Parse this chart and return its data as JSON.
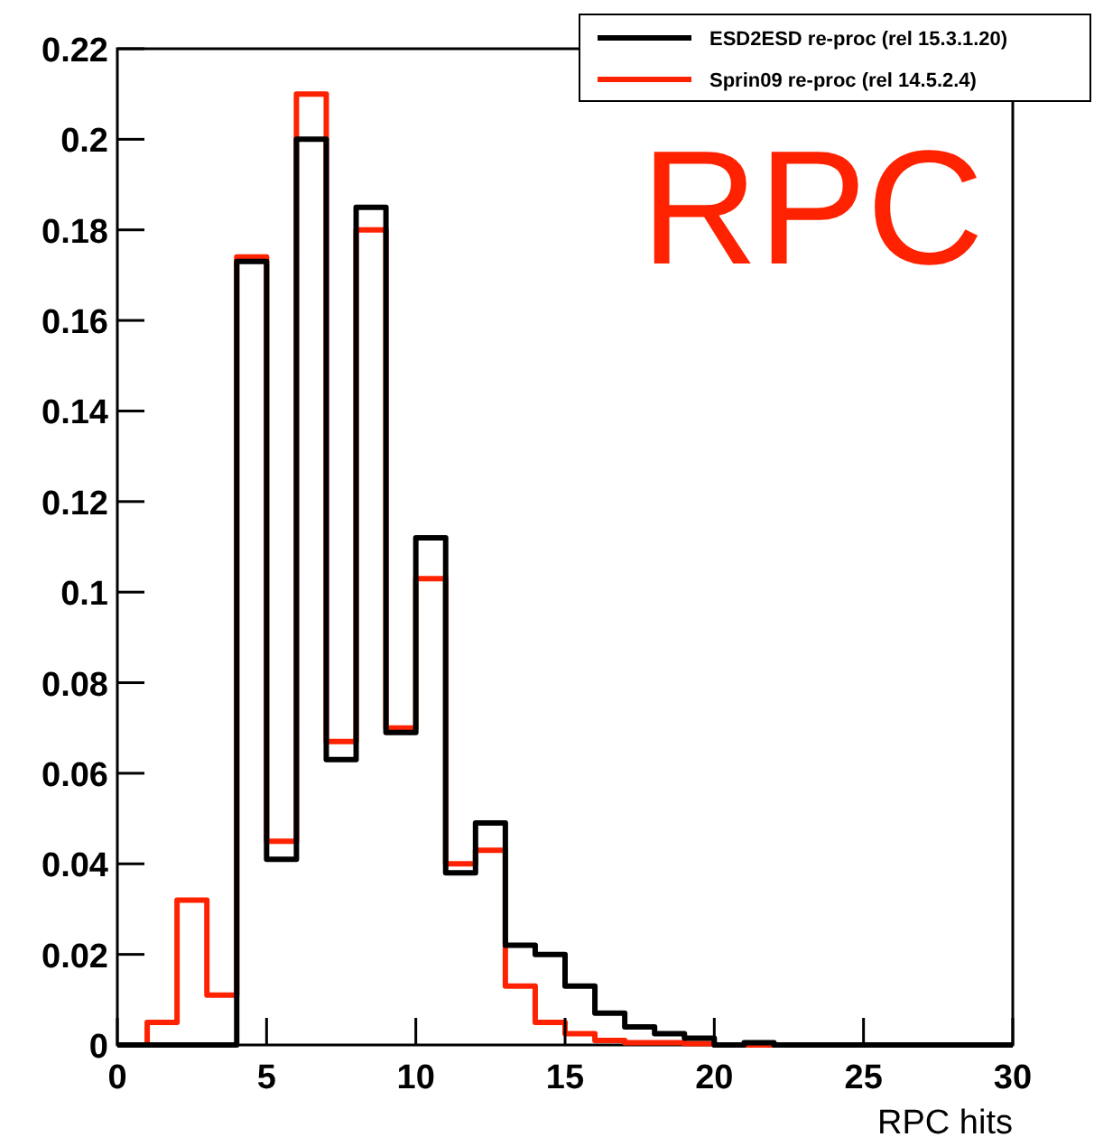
{
  "chart_data": {
    "type": "histogram",
    "xlabel": "RPC hits",
    "bins": [
      0,
      1,
      2,
      3,
      4,
      5,
      6,
      7,
      8,
      9,
      10,
      11,
      12,
      13,
      14,
      15,
      16,
      17,
      18,
      19,
      20,
      21,
      22,
      23,
      24,
      25,
      26,
      27,
      28,
      29,
      30
    ],
    "series": [
      {
        "name": "ESD2ESD re-proc (rel 15.3.1.20)",
        "color": "#000000",
        "values": [
          0,
          0,
          0,
          0,
          0.173,
          0.041,
          0.2,
          0.063,
          0.185,
          0.069,
          0.112,
          0.038,
          0.049,
          0.022,
          0.02,
          0.013,
          0.007,
          0.004,
          0.0025,
          0.0015,
          0,
          0.0005,
          0,
          0,
          0,
          0,
          0,
          0,
          0,
          0
        ]
      },
      {
        "name": "Sprin09 re-proc (rel 14.5.2.4)",
        "color": "#ff2200",
        "values": [
          0,
          0.005,
          0.032,
          0.011,
          0.174,
          0.045,
          0.21,
          0.067,
          0.18,
          0.07,
          0.103,
          0.04,
          0.043,
          0.013,
          0.005,
          0.0025,
          0.001,
          0.0005,
          0.0005,
          0.0003,
          0,
          0,
          0,
          0,
          0,
          0,
          0,
          0,
          0,
          0
        ]
      }
    ],
    "xlim": [
      0,
      30
    ],
    "xticks": [
      0,
      5,
      10,
      15,
      20,
      25,
      30
    ],
    "ylim": [
      0,
      0.22
    ],
    "yticks": [
      0,
      0.02,
      0.04,
      0.06,
      0.08,
      0.1,
      0.12,
      0.14,
      0.16,
      0.18,
      0.2,
      0.22
    ],
    "legend": "top right",
    "grid": false,
    "annotations": [
      "RPC"
    ]
  }
}
